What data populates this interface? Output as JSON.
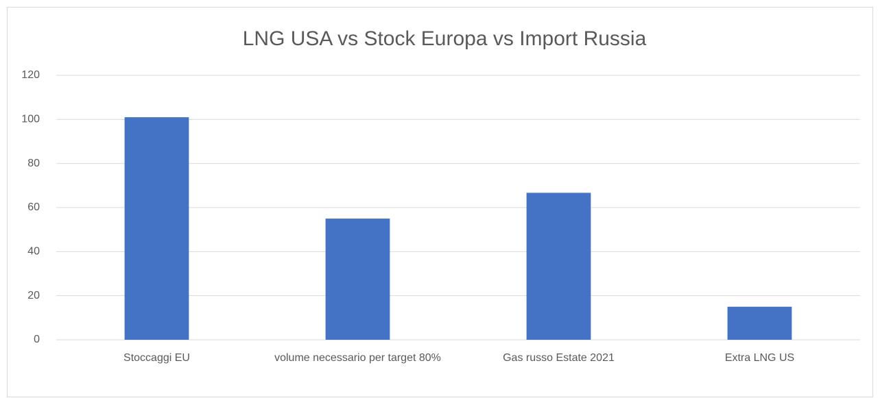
{
  "chart_data": {
    "type": "bar",
    "title": "LNG USA vs Stock Europa vs Import Russia",
    "categories": [
      "Stoccaggi EU",
      "volume necessario per target 80%",
      "Gas russo Estate 2021",
      "Extra LNG US"
    ],
    "values": [
      101,
      55,
      66.7,
      15
    ],
    "color": "#4472c4",
    "ylim": [
      0,
      120
    ],
    "yticks": [
      0,
      20,
      40,
      60,
      80,
      100,
      120
    ],
    "grid": true
  }
}
